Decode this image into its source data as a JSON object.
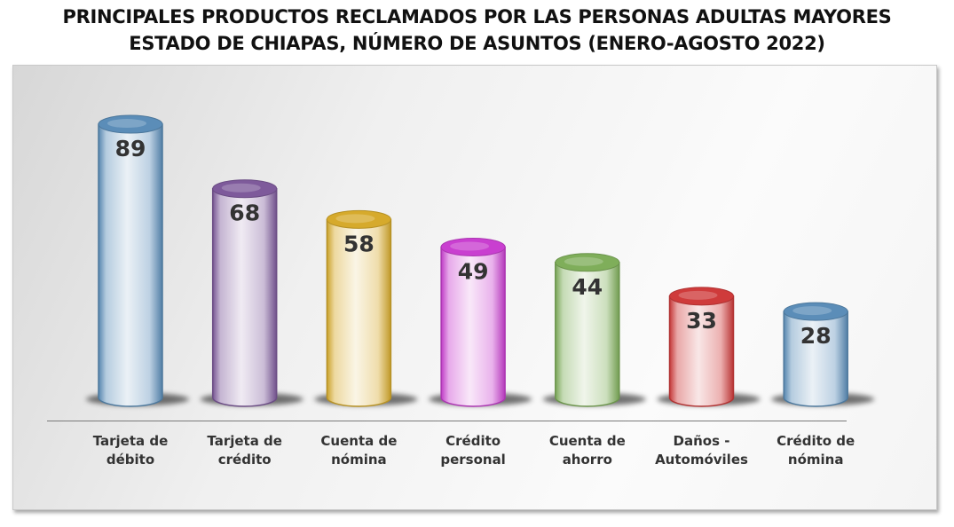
{
  "title_line1": "PRINCIPALES PRODUCTOS RECLAMADOS POR LAS PERSONAS ADULTAS MAYORES",
  "title_line2": "ESTADO DE CHIAPAS, NÚMERO DE ASUNTOS (ENERO-AGOSTO 2022)",
  "chart_data": {
    "type": "bar",
    "title": "PRINCIPALES PRODUCTOS RECLAMADOS POR LAS PERSONAS ADULTAS MAYORES ESTADO DE CHIAPAS, NÚMERO DE ASUNTOS (ENERO-AGOSTO 2022)",
    "categories": [
      [
        "Tarjeta de",
        "débito"
      ],
      [
        "Tarjeta de",
        "crédito"
      ],
      [
        "Cuenta de",
        "nómina"
      ],
      [
        "Crédito",
        "personal"
      ],
      [
        "Cuenta de",
        "ahorro"
      ],
      [
        "Daños -",
        "Automóviles"
      ],
      [
        "Crédito de",
        "nómina"
      ]
    ],
    "values": [
      89,
      68,
      58,
      49,
      44,
      33,
      28
    ],
    "colors": [
      "#5b8db8",
      "#7e5a9b",
      "#d6aa2c",
      "#c93fd0",
      "#7fae5a",
      "#cf3b3b",
      "#5b8db8"
    ],
    "ylim": [
      0,
      100
    ],
    "xlabel": "",
    "ylabel": "",
    "grid": false,
    "legend": "none"
  }
}
